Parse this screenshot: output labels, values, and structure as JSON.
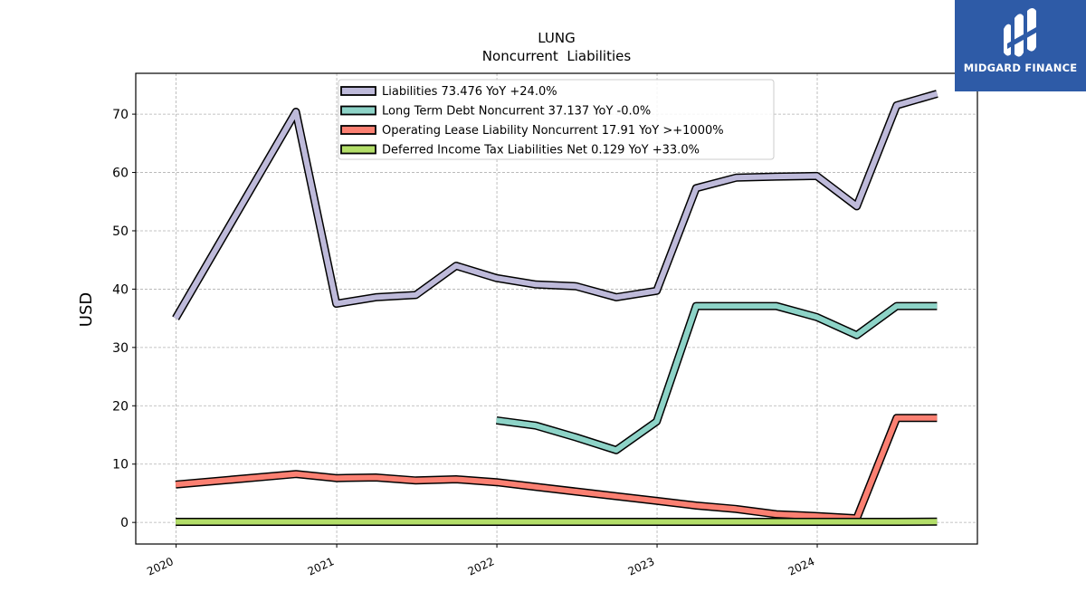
{
  "chart_data": {
    "type": "line",
    "title": "LUNG",
    "subtitle": "Noncurrent  Liabilities",
    "ylabel": "USD",
    "xlabel": "",
    "x_ticks": [
      "2020",
      "2021",
      "2022",
      "2023",
      "2024"
    ],
    "y_ticks": [
      0,
      10,
      20,
      30,
      40,
      50,
      60,
      70
    ],
    "xlim": [
      "2019-10-01",
      "2024-12-31"
    ],
    "ylim": [
      -3.7,
      77
    ],
    "grid": true,
    "legend_position": "upper-center",
    "series": [
      {
        "name": "Liabilities  73.476 YoY +24.0%",
        "color": "#bebada",
        "x": [
          "2019-12-31",
          "2020-09-30",
          "2020-12-31",
          "2021-03-31",
          "2021-06-30",
          "2021-09-30",
          "2021-12-31",
          "2022-03-31",
          "2022-06-30",
          "2022-09-30",
          "2022-12-31",
          "2023-03-31",
          "2023-06-30",
          "2023-09-30",
          "2023-12-31",
          "2024-03-31",
          "2024-06-30",
          "2024-09-30"
        ],
        "values": [
          35.0,
          70.4,
          37.5,
          38.6,
          39.0,
          44.0,
          41.9,
          40.8,
          40.5,
          38.6,
          39.7,
          57.3,
          59.1,
          59.3,
          59.4,
          54.2,
          71.5,
          73.5
        ]
      },
      {
        "name": "Long Term Debt Noncurrent  37.137 YoY -0.0%",
        "color": "#8dd3c7",
        "x": [
          "2021-12-31",
          "2022-03-31",
          "2022-06-30",
          "2022-09-30",
          "2022-12-31",
          "2023-03-31",
          "2023-06-30",
          "2023-09-30",
          "2023-12-31",
          "2024-03-31",
          "2024-06-30",
          "2024-09-30"
        ],
        "values": [
          17.5,
          16.6,
          14.6,
          12.4,
          17.3,
          37.1,
          37.1,
          37.1,
          35.2,
          32.1,
          37.1,
          37.1
        ]
      },
      {
        "name": "Operating Lease Liability Noncurrent  17.91 YoY >+1000%",
        "color": "#fb8072",
        "x": [
          "2019-12-31",
          "2020-09-30",
          "2020-12-31",
          "2021-03-31",
          "2021-06-30",
          "2021-09-30",
          "2021-12-31",
          "2022-03-31",
          "2022-06-30",
          "2022-09-30",
          "2022-12-31",
          "2023-03-31",
          "2023-06-30",
          "2023-09-30",
          "2023-12-31",
          "2024-03-31",
          "2024-06-30",
          "2024-09-30"
        ],
        "values": [
          6.5,
          8.3,
          7.6,
          7.7,
          7.2,
          7.4,
          6.9,
          6.1,
          5.3,
          4.5,
          3.7,
          2.9,
          2.3,
          1.4,
          1.1,
          0.7,
          17.9,
          17.9
        ]
      },
      {
        "name": "Deferred Income Tax Liabilities Net  0.129 YoY +33.0%",
        "color": "#b3de69",
        "x": [
          "2019-12-31",
          "2020-09-30",
          "2020-12-31",
          "2021-03-31",
          "2021-06-30",
          "2021-09-30",
          "2021-12-31",
          "2022-03-31",
          "2022-06-30",
          "2022-09-30",
          "2022-12-31",
          "2023-03-31",
          "2023-06-30",
          "2023-09-30",
          "2023-12-31",
          "2024-03-31",
          "2024-06-30",
          "2024-09-30"
        ],
        "values": [
          0.1,
          0.1,
          0.1,
          0.1,
          0.1,
          0.1,
          0.1,
          0.1,
          0.1,
          0.1,
          0.1,
          0.1,
          0.1,
          0.1,
          0.1,
          0.1,
          0.1,
          0.13
        ]
      }
    ]
  },
  "logo": {
    "text": "MIDGARD FINANCE",
    "background": "#2e5ba7"
  }
}
